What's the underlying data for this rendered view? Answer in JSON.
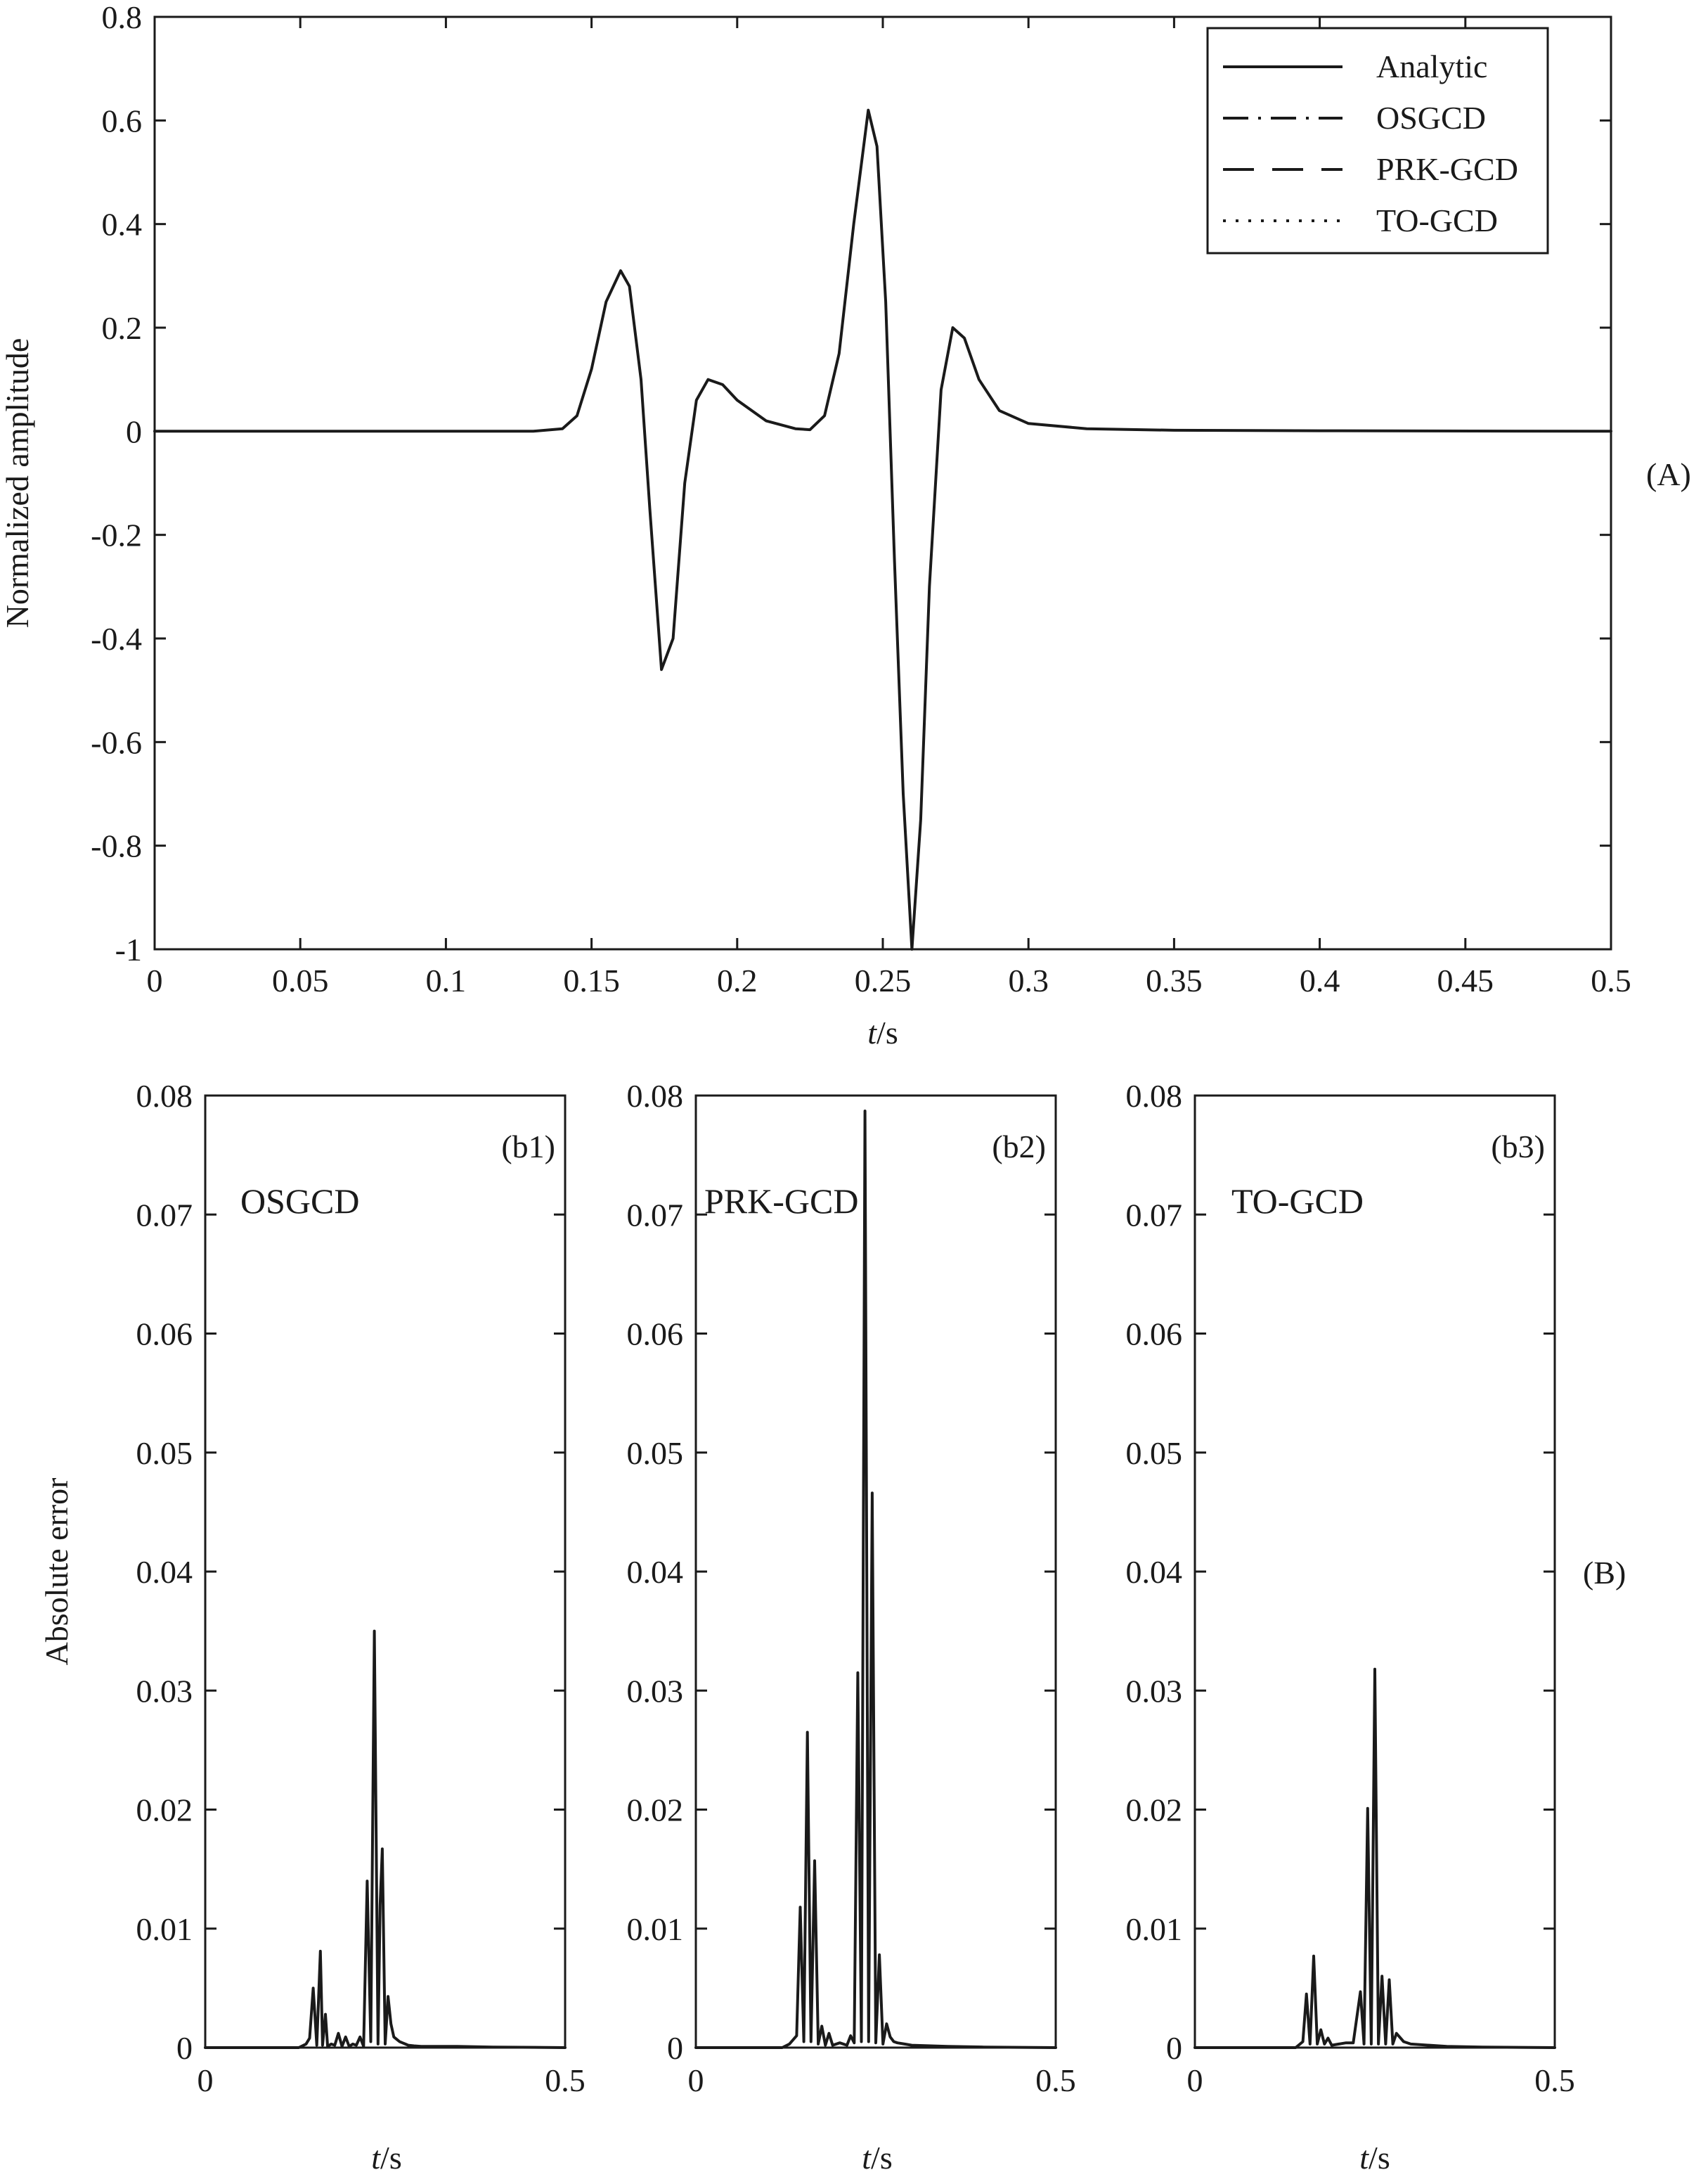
{
  "chart_data": [
    {
      "id": "A",
      "type": "line",
      "panel_label": "(A)",
      "xlabel": "t/s",
      "ylabel": "Normalized amplitude",
      "xlim": [
        0,
        0.5
      ],
      "ylim": [
        -1,
        0.8
      ],
      "xticks": [
        0,
        0.05,
        0.1,
        0.15,
        0.2,
        0.25,
        0.3,
        0.35,
        0.4,
        0.45,
        0.5
      ],
      "xtick_labels": [
        "0",
        "0.05",
        "0.1",
        "0.15",
        "0.2",
        "0.25",
        "0.3",
        "0.35",
        "0.4",
        "0.45",
        "0.5"
      ],
      "yticks": [
        -1,
        -0.8,
        -0.6,
        -0.4,
        -0.2,
        0,
        0.2,
        0.4,
        0.6,
        0.8
      ],
      "ytick_labels": [
        "-1",
        "-0.8",
        "-0.6",
        "-0.4",
        "-0.2",
        "0",
        "0.2",
        "0.4",
        "0.6",
        "0.8"
      ],
      "legend_position": "top-right",
      "legend": [
        {
          "name": "Analytic",
          "style": "solid"
        },
        {
          "name": "OSGCD",
          "style": "dashdot"
        },
        {
          "name": "PRK-GCD",
          "style": "dashed"
        },
        {
          "name": "TO-GCD",
          "style": "dotted"
        }
      ],
      "series": [
        {
          "name": "Analytic",
          "x": [
            0,
            0.13,
            0.14,
            0.145,
            0.15,
            0.155,
            0.16,
            0.163,
            0.167,
            0.17,
            0.174,
            0.178,
            0.182,
            0.186,
            0.19,
            0.195,
            0.2,
            0.21,
            0.22,
            0.225,
            0.23,
            0.235,
            0.24,
            0.245,
            0.248,
            0.251,
            0.254,
            0.257,
            0.26,
            0.263,
            0.266,
            0.27,
            0.274,
            0.278,
            0.283,
            0.29,
            0.3,
            0.32,
            0.35,
            0.4,
            0.5
          ],
          "y": [
            0,
            0,
            0.005,
            0.03,
            0.12,
            0.25,
            0.31,
            0.28,
            0.1,
            -0.15,
            -0.46,
            -0.4,
            -0.1,
            0.06,
            0.1,
            0.09,
            0.06,
            0.02,
            0.005,
            0.003,
            0.03,
            0.15,
            0.4,
            0.62,
            0.55,
            0.25,
            -0.25,
            -0.7,
            -1.0,
            -0.75,
            -0.3,
            0.08,
            0.2,
            0.18,
            0.1,
            0.04,
            0.015,
            0.005,
            0.002,
            0.001,
            0
          ]
        }
      ]
    },
    {
      "id": "b1",
      "type": "line",
      "title": "OSGCD",
      "panel_label": "(b1)",
      "xlabel": "t/s",
      "ylabel": "Absolute error",
      "xlim": [
        0,
        0.5
      ],
      "ylim": [
        0,
        0.08
      ],
      "xticks": [
        0,
        0.5
      ],
      "xtick_labels": [
        "0",
        "0.5"
      ],
      "yticks": [
        0,
        0.01,
        0.02,
        0.03,
        0.04,
        0.05,
        0.06,
        0.07,
        0.08
      ],
      "ytick_labels": [
        "0",
        "0.01",
        "0.02",
        "0.03",
        "0.04",
        "0.05",
        "0.06",
        "0.07",
        "0.08"
      ],
      "series": [
        {
          "name": "OSGCD",
          "x": [
            0,
            0.13,
            0.14,
            0.145,
            0.15,
            0.155,
            0.16,
            0.163,
            0.167,
            0.17,
            0.175,
            0.18,
            0.185,
            0.19,
            0.195,
            0.2,
            0.205,
            0.21,
            0.215,
            0.22,
            0.225,
            0.23,
            0.235,
            0.24,
            0.243,
            0.246,
            0.25,
            0.254,
            0.258,
            0.262,
            0.266,
            0.27,
            0.274,
            0.278,
            0.282,
            0.29,
            0.3,
            0.35,
            0.4,
            0.5
          ],
          "y": [
            0,
            0,
            0.0003,
            0.0008,
            0.005,
            0.0002,
            0.0081,
            0.0002,
            0.0028,
            0.0001,
            0.0003,
            0.0002,
            0.0012,
            0.0001,
            0.0009,
            0.0001,
            0.0003,
            0.0002,
            0.0009,
            0.0001,
            0.014,
            0.0005,
            0.035,
            0.0003,
            0.012,
            0.0167,
            0.0003,
            0.0043,
            0.002,
            0.0009,
            0.0007,
            0.0005,
            0.0004,
            0.0003,
            0.0002,
            0.00015,
            0.0001,
            0.0001,
            5e-05,
            0
          ]
        }
      ]
    },
    {
      "id": "b2",
      "type": "line",
      "title": "PRK-GCD",
      "panel_label": "(b2)",
      "xlabel": "t/s",
      "ylabel": "",
      "xlim": [
        0,
        0.5
      ],
      "ylim": [
        0,
        0.08
      ],
      "xticks": [
        0,
        0.5
      ],
      "xtick_labels": [
        "0",
        "0.5"
      ],
      "yticks": [
        0,
        0.01,
        0.02,
        0.03,
        0.04,
        0.05,
        0.06,
        0.07,
        0.08
      ],
      "ytick_labels": [
        "0",
        "0.01",
        "0.02",
        "0.03",
        "0.04",
        "0.05",
        "0.06",
        "0.07",
        "0.08"
      ],
      "series": [
        {
          "name": "PRK-GCD",
          "x": [
            0,
            0.12,
            0.13,
            0.14,
            0.145,
            0.15,
            0.155,
            0.16,
            0.165,
            0.17,
            0.175,
            0.18,
            0.185,
            0.19,
            0.2,
            0.21,
            0.215,
            0.22,
            0.225,
            0.23,
            0.235,
            0.24,
            0.245,
            0.25,
            0.255,
            0.26,
            0.265,
            0.27,
            0.275,
            0.28,
            0.29,
            0.3,
            0.35,
            0.4,
            0.5
          ],
          "y": [
            0,
            0,
            0.0003,
            0.001,
            0.0118,
            0.0005,
            0.0265,
            0.0005,
            0.0157,
            0.0003,
            0.0018,
            0.0002,
            0.0012,
            0.0002,
            0.0004,
            0.0002,
            0.001,
            0.0004,
            0.0315,
            0.0005,
            0.0787,
            0.0005,
            0.0466,
            0.0004,
            0.0078,
            0.0003,
            0.002,
            0.0009,
            0.0005,
            0.0004,
            0.0003,
            0.0002,
            0.0001,
            5e-05,
            0
          ]
        }
      ]
    },
    {
      "id": "b3",
      "type": "line",
      "title": "TO-GCD",
      "panel_label": "(b3)",
      "xlabel": "t/s",
      "ylabel": "",
      "xlim": [
        0,
        0.5
      ],
      "ylim": [
        0,
        0.08
      ],
      "xticks": [
        0,
        0.5
      ],
      "xtick_labels": [
        "0",
        "0.5"
      ],
      "yticks": [
        0,
        0.01,
        0.02,
        0.03,
        0.04,
        0.05,
        0.06,
        0.07,
        0.08
      ],
      "ytick_labels": [
        "0",
        "0.01",
        "0.02",
        "0.03",
        "0.04",
        "0.05",
        "0.06",
        "0.07",
        "0.08"
      ],
      "series": [
        {
          "name": "TO-GCD",
          "x": [
            0,
            0.14,
            0.15,
            0.155,
            0.16,
            0.165,
            0.17,
            0.175,
            0.18,
            0.185,
            0.19,
            0.2,
            0.21,
            0.22,
            0.23,
            0.235,
            0.24,
            0.245,
            0.25,
            0.255,
            0.26,
            0.265,
            0.27,
            0.275,
            0.28,
            0.29,
            0.3,
            0.35,
            0.4,
            0.5
          ],
          "y": [
            0,
            0,
            0.0005,
            0.0045,
            0.0003,
            0.0077,
            0.0003,
            0.0015,
            0.0003,
            0.0008,
            0.0002,
            0.0003,
            0.0004,
            0.0004,
            0.0047,
            0.0003,
            0.0201,
            0.0003,
            0.0318,
            0.0003,
            0.006,
            0.0003,
            0.0057,
            0.0003,
            0.0012,
            0.0005,
            0.0003,
            0.0001,
            5e-05,
            0
          ]
        }
      ]
    }
  ]
}
